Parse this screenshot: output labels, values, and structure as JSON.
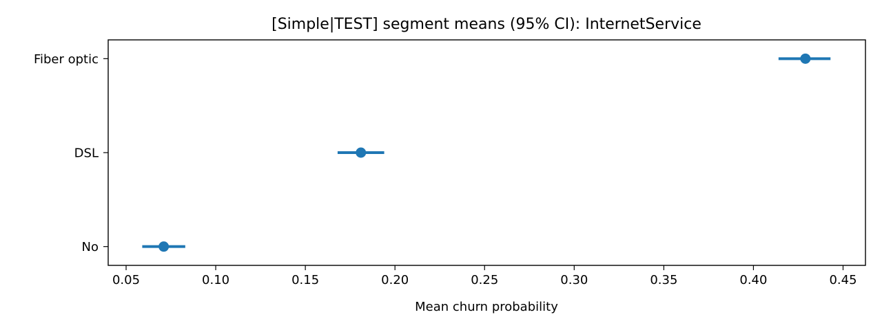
{
  "chart_data": {
    "type": "errorbar",
    "orientation": "horizontal",
    "title": "[Simple|TEST] segment means (95% CI): InternetService",
    "xlabel": "Mean churn probability",
    "ylabel": "",
    "categories": [
      "Fiber optic",
      "DSL",
      "No"
    ],
    "means": [
      0.429,
      0.181,
      0.071
    ],
    "ci_low": [
      0.414,
      0.168,
      0.059
    ],
    "ci_high": [
      0.443,
      0.194,
      0.083
    ],
    "xlim": [
      0.04,
      0.4625
    ],
    "xticks": [
      0.05,
      0.1,
      0.15,
      0.2,
      0.25,
      0.3,
      0.35,
      0.4,
      0.45
    ],
    "xtick_labels": [
      "0.05",
      "0.10",
      "0.15",
      "0.20",
      "0.25",
      "0.30",
      "0.35",
      "0.40",
      "0.45"
    ],
    "grid": false,
    "series_color": "#1f77b4"
  }
}
